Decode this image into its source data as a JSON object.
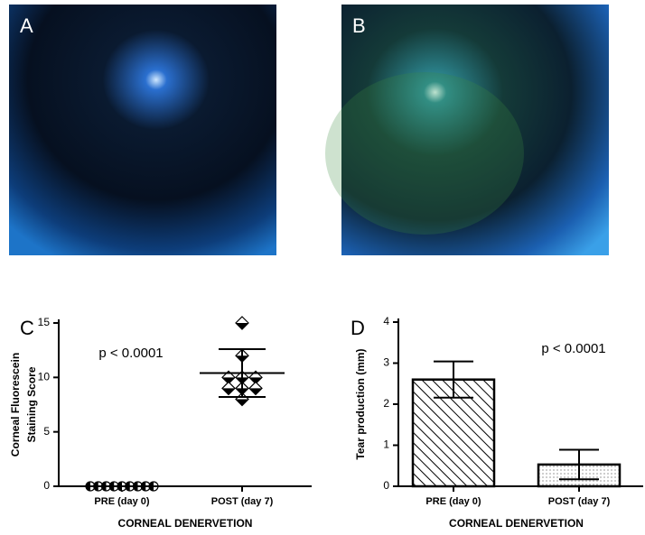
{
  "panels": [
    {
      "label": "A"
    },
    {
      "label": "B"
    }
  ],
  "chart_data": [
    {
      "type": "scatter",
      "label": "C",
      "ylabel": [
        "Corneal Fluorescein",
        "Staining Score"
      ],
      "xlabel": "CORNEAL DENERVETION",
      "categories": [
        "PRE (day 0)",
        "POST (day 7)"
      ],
      "values": [
        [
          0,
          0,
          0,
          0,
          0,
          0,
          0,
          0,
          0
        ],
        [
          15,
          12,
          10,
          10,
          10,
          9,
          9,
          9,
          8
        ]
      ],
      "means": [
        0,
        10.4
      ],
      "errors": [
        0,
        2.2
      ],
      "annotation": "p < 0.0001",
      "ylim": [
        0,
        15
      ],
      "yticks": [
        0,
        5,
        10,
        15
      ]
    },
    {
      "type": "bar",
      "label": "D",
      "ylabel": [
        "Tear production (mm)"
      ],
      "xlabel": "CORNEAL DENERVETION",
      "categories": [
        "PRE (day 0)",
        "POST (day 7)"
      ],
      "values": [
        2.6,
        0.53
      ],
      "errors": [
        0.44,
        0.36
      ],
      "annotation": "p < 0.0001",
      "ylim": [
        0,
        4
      ],
      "yticks": [
        0,
        1,
        2,
        3,
        4
      ]
    }
  ]
}
